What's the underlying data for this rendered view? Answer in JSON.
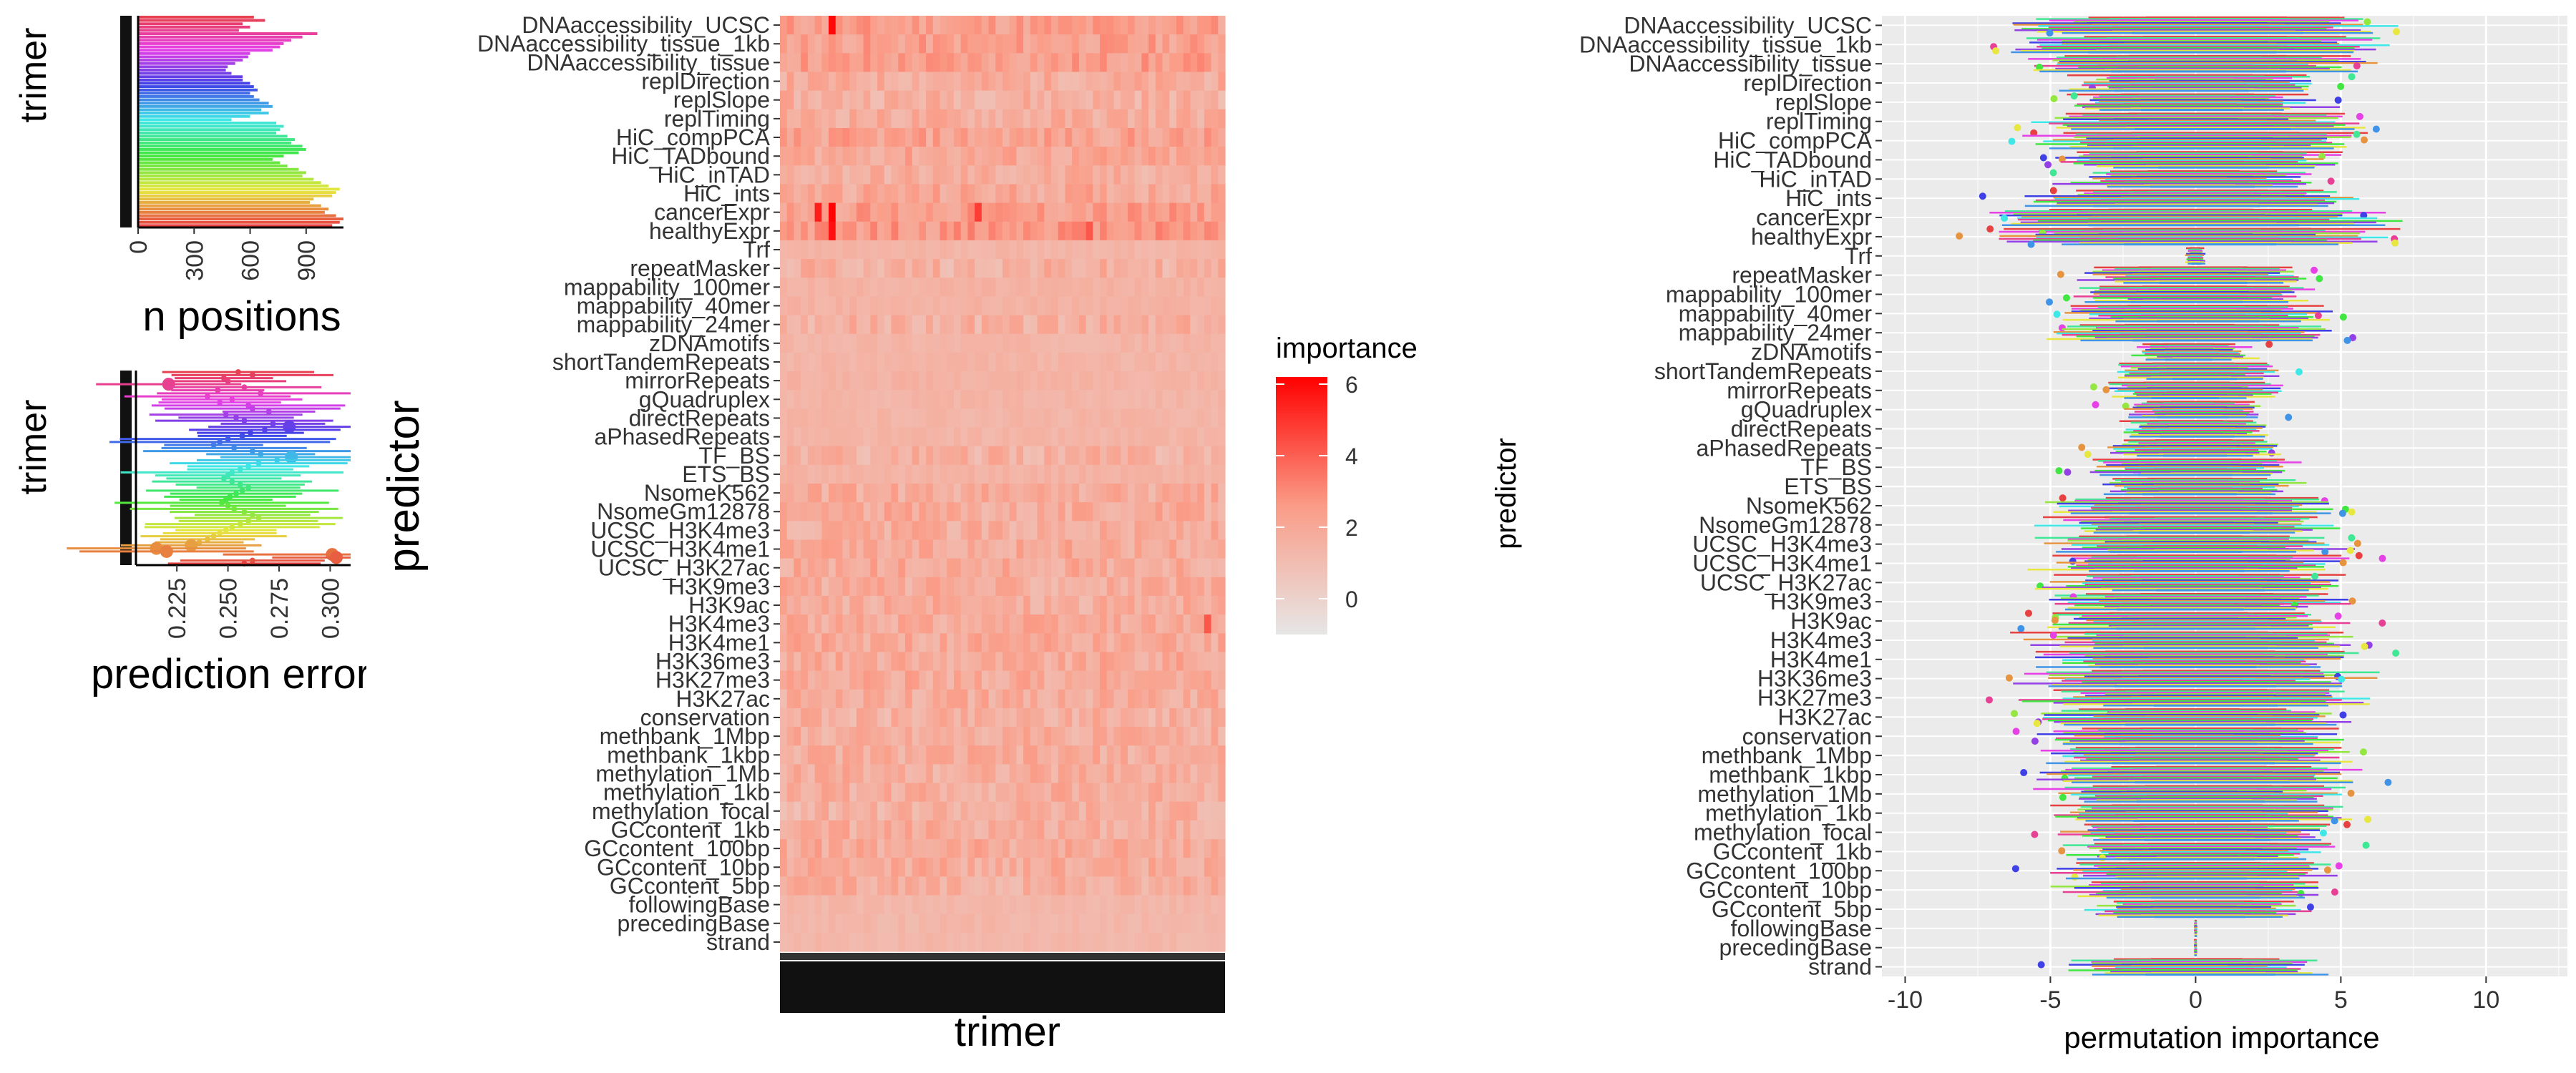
{
  "chart_data": [
    {
      "type": "bar",
      "orientation": "horizontal",
      "ylabel": "trimer",
      "xlabel": "n positions",
      "xlim": [
        0,
        1100
      ],
      "xticks": [
        "0",
        "300",
        "600",
        "900"
      ],
      "values": [
        620,
        680,
        560,
        600,
        540,
        960,
        880,
        820,
        780,
        760,
        720,
        600,
        590,
        560,
        520,
        480,
        470,
        500,
        560,
        560,
        600,
        620,
        640,
        600,
        620,
        650,
        700,
        720,
        660,
        700,
        600,
        500,
        740,
        780,
        760,
        740,
        800,
        840,
        820,
        880,
        900,
        860,
        780,
        720,
        760,
        800,
        860,
        900,
        880,
        940,
        980,
        1020,
        1080,
        1060,
        1040,
        940,
        920,
        980,
        1020,
        1000,
        1060,
        1100,
        1080,
        1040
      ]
    },
    {
      "type": "scatter",
      "ylabel": "trimer",
      "xlabel": "prediction error",
      "xlim": [
        0.205,
        0.31
      ],
      "xticks": [
        "0.225",
        "0.250",
        "0.275",
        "0.300"
      ],
      "values": [
        0.255,
        0.262,
        0.248,
        0.25,
        0.221,
        0.258,
        0.245,
        0.266,
        0.24,
        0.252,
        0.246,
        0.26,
        0.262,
        0.27,
        0.249,
        0.254,
        0.258,
        0.272,
        0.28,
        0.268,
        0.261,
        0.257,
        0.25,
        0.246,
        0.243,
        0.253,
        0.262,
        0.266,
        0.281,
        0.274,
        0.265,
        0.26,
        0.256,
        0.252,
        0.25,
        0.248,
        0.252,
        0.256,
        0.26,
        0.257,
        0.254,
        0.251,
        0.249,
        0.247,
        0.25,
        0.253,
        0.258,
        0.262,
        0.265,
        0.26,
        0.256,
        0.252,
        0.249,
        0.246,
        0.243,
        0.24,
        0.236,
        0.232,
        0.215,
        0.22,
        0.301,
        0.303,
        0.262,
        0.258
      ]
    },
    {
      "type": "heatmap",
      "xlabel": "trimer",
      "ylabel": "predictor",
      "legend_title": "importance",
      "legend_ticks": [
        "6",
        "4",
        "2",
        "0"
      ],
      "zlim": [
        -1,
        6.2
      ],
      "columns": 64,
      "predictors": [
        "DNAaccessibility_UCSC",
        "DNAaccessibility_tissue_1kb",
        "DNAaccessibility_tissue",
        "replDirection",
        "replSlope",
        "replTiming",
        "HiC_compPCA",
        "HiC_TADbound",
        "HiC_inTAD",
        "HiC_ints",
        "cancerExpr",
        "healthyExpr",
        "Trf",
        "repeatMasker",
        "mappability_100mer",
        "mappability_40mer",
        "mappability_24mer",
        "zDNAmotifs",
        "shortTandemRepeats",
        "mirrorRepeats",
        "gQuadruplex",
        "directRepeats",
        "aPhasedRepeats",
        "TF_BS",
        "ETS_BS",
        "NsomeK562",
        "NsomeGm12878",
        "UCSC_H3K4me3",
        "UCSC_H3K4me1",
        "UCSC_H3K27ac",
        "H3K9me3",
        "H3K9ac",
        "H3K4me3",
        "H3K4me1",
        "H3K36me3",
        "H3K27me3",
        "H3K27ac",
        "conservation",
        "methbank_1Mbp",
        "methbank_1kbp",
        "methylation_1Mb",
        "methylation_1kb",
        "methylation_focal",
        "GCcontent_1kb",
        "GCcontent_100bp",
        "GCcontent_10bp",
        "GCcontent_5bp",
        "followingBase",
        "precedingBase",
        "strand"
      ],
      "row_means": [
        2.4,
        2.3,
        2.4,
        1.8,
        1.7,
        1.8,
        2.2,
        2.0,
        1.7,
        2.0,
        2.4,
        2.6,
        1.4,
        1.6,
        1.5,
        1.5,
        1.6,
        1.4,
        1.4,
        1.5,
        1.4,
        1.4,
        1.4,
        1.6,
        1.5,
        1.8,
        1.9,
        1.8,
        1.9,
        1.9,
        1.8,
        1.8,
        1.9,
        1.9,
        1.9,
        1.9,
        1.8,
        1.7,
        1.8,
        1.8,
        1.8,
        1.8,
        1.6,
        1.8,
        1.9,
        1.9,
        1.7,
        1.3,
        1.3,
        1.3
      ],
      "notable_cells": [
        {
          "row": "DNAaccessibility_UCSC",
          "col": 7,
          "value": 6.0
        },
        {
          "row": "cancerExpr",
          "col": 5,
          "value": 5.5
        },
        {
          "row": "cancerExpr",
          "col": 7,
          "value": 6.1
        },
        {
          "row": "healthyExpr",
          "col": 7,
          "value": 5.8
        },
        {
          "row": "cancerExpr",
          "col": 28,
          "value": 4.8
        },
        {
          "row": "healthyExpr",
          "col": 44,
          "value": 4.2
        },
        {
          "row": "H3K4me3",
          "col": 61,
          "value": 4.2
        }
      ]
    },
    {
      "type": "boxplot",
      "orientation": "horizontal",
      "xlabel": "permutation importance",
      "ylabel": "predictor",
      "xlim": [
        -10.8,
        12.8
      ],
      "xticks": [
        -10,
        -5,
        0,
        5,
        10
      ],
      "categories": [
        "DNAaccessibility_UCSC",
        "DNAaccessibility_tissue_1kb",
        "DNAaccessibility_tissue",
        "replDirection",
        "replSlope",
        "replTiming",
        "HiC_compPCA",
        "HiC_TADbound",
        "HiC_inTAD",
        "HiC_ints",
        "cancerExpr",
        "healthyExpr",
        "Trf",
        "repeatMasker",
        "mappability_100mer",
        "mappability_40mer",
        "mappability_24mer",
        "zDNAmotifs",
        "shortTandemRepeats",
        "mirrorRepeats",
        "gQuadruplex",
        "directRepeats",
        "aPhasedRepeats",
        "TF_BS",
        "ETS_BS",
        "NsomeK562",
        "NsomeGm12878",
        "UCSC_H3K4me3",
        "UCSC_H3K4me1",
        "UCSC_H3K27ac",
        "H3K9me3",
        "H3K9ac",
        "H3K4me3",
        "H3K4me1",
        "H3K36me3",
        "H3K27me3",
        "H3K27ac",
        "conservation",
        "methbank_1Mbp",
        "methbank_1kbp",
        "methylation_1Mb",
        "methylation_1kb",
        "methylation_focal",
        "GCcontent_1kb",
        "GCcontent_100bp",
        "GCcontent_10bp",
        "GCcontent_5bp",
        "followingBase",
        "precedingBase",
        "strand"
      ],
      "spread": [
        5.5,
        5.5,
        5.5,
        4.0,
        4.0,
        4.8,
        5.0,
        4.5,
        3.8,
        5.0,
        6.0,
        6.0,
        0.3,
        3.5,
        3.5,
        4.0,
        4.0,
        1.8,
        2.5,
        2.6,
        2.0,
        2.2,
        2.5,
        3.0,
        3.0,
        4.5,
        4.5,
        4.5,
        4.5,
        4.5,
        4.5,
        4.5,
        5.0,
        5.0,
        5.0,
        5.0,
        4.5,
        4.5,
        4.5,
        4.5,
        4.5,
        4.5,
        4.0,
        4.0,
        4.0,
        4.0,
        3.5,
        0.05,
        0.05,
        3.8
      ]
    }
  ]
}
